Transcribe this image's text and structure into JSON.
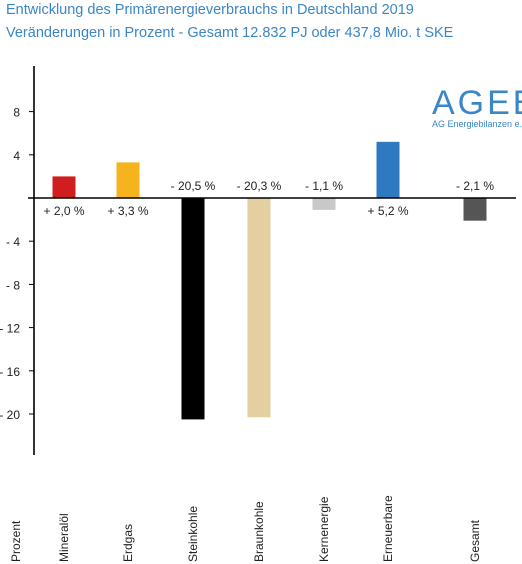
{
  "chart_data": {
    "type": "bar",
    "title": "Entwicklung des Primärenergieverbrauchs in Deutschland 2019",
    "subtitle": "Veränderungen in Prozent - Gesamt 12.832 PJ oder 437,8 Mio. t SKE",
    "ylabel": "Prozent",
    "ylim": [
      -24,
      12
    ],
    "yticks": [
      8,
      4,
      -4,
      -8,
      -12,
      -16,
      -20
    ],
    "ytick_labels": [
      "8",
      "4",
      "- 4",
      "- 8",
      "- 12",
      "- 16",
      "- 20"
    ],
    "categories": [
      "Mineralöl",
      "Erdgas",
      "Steinkohle",
      "Braunkohle",
      "Kernenergie",
      "Erneuerbare",
      "Gesamt"
    ],
    "values": [
      2.0,
      3.3,
      -20.5,
      -20.3,
      -1.1,
      5.2,
      -2.1
    ],
    "data_labels": [
      "+ 2,0 %",
      "+ 3,3 %",
      "- 20,5 %",
      "- 20,3 %",
      "- 1,1 %",
      "+ 5,2 %",
      "- 2,1 %"
    ],
    "colors": [
      "#d01e1e",
      "#f5b31e",
      "#000000",
      "#e3cfa0",
      "#c8c8c8",
      "#2e79c0",
      "#555555"
    ],
    "grid": false,
    "legend": "none"
  },
  "logo": {
    "name": "AGEB",
    "subtitle": "AG Energiebilanzen e.V."
  },
  "colors": {
    "accent": "#3a86c6"
  }
}
